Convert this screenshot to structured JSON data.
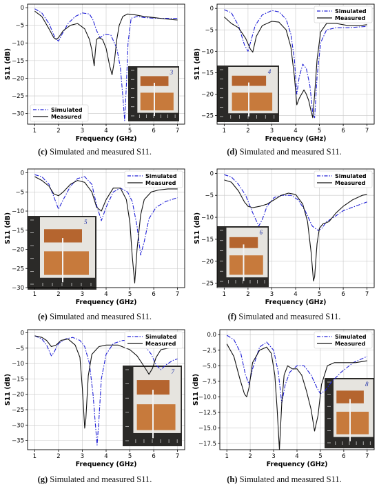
{
  "figure": {
    "panels": [
      {
        "id": "c",
        "caption_letter": "(c)",
        "caption_text": " Simulated and measured S11."
      },
      {
        "id": "d",
        "caption_letter": "(d)",
        "caption_text": " Simulated and measured S11."
      },
      {
        "id": "e",
        "caption_letter": "(e)",
        "caption_text": " Simulated and measured S11."
      },
      {
        "id": "f",
        "caption_letter": "(f)",
        "caption_text": " Simulated and measured S11."
      },
      {
        "id": "g",
        "caption_letter": "(g)",
        "caption_text": " Simulated and measured S11."
      },
      {
        "id": "h",
        "caption_letter": "(h)",
        "caption_text": " Simulated and measured S11."
      }
    ]
  },
  "colors": {
    "simulated": "#1f1fd6",
    "measured": "#111111",
    "grid": "#c8c8c8"
  },
  "chart_data": [
    {
      "id": "c",
      "type": "line",
      "xlabel": "Frequency (GHz)",
      "ylabel": "S11 (dB)",
      "xlim": [
        0.7,
        7.3
      ],
      "ylim": [
        -33,
        1
      ],
      "xticks": [
        1,
        2,
        3,
        4,
        5,
        6,
        7
      ],
      "yticks": [
        0,
        -5,
        -10,
        -15,
        -20,
        -25,
        -30
      ],
      "grid": true,
      "legend": "bottom-left",
      "inset": {
        "position": "bottom-right",
        "label": "3"
      },
      "series": [
        {
          "name": "Simulated",
          "style": "dashdot",
          "x": [
            1.0,
            1.3,
            1.6,
            1.85,
            2.0,
            2.15,
            2.4,
            2.7,
            3.0,
            3.3,
            3.45,
            3.6,
            3.75,
            3.95,
            4.2,
            4.45,
            4.6,
            4.7,
            4.78,
            4.85,
            4.92,
            5.05,
            5.3,
            5.6,
            6.0,
            6.5,
            7.0
          ],
          "y": [
            -0.3,
            -1.5,
            -4.5,
            -8.5,
            -9.5,
            -7.5,
            -4.5,
            -2.5,
            -1.5,
            -1.8,
            -3.5,
            -6.5,
            -8.5,
            -7.5,
            -7.8,
            -11.5,
            -17.0,
            -25.0,
            -32.0,
            -22.0,
            -10.0,
            -3.0,
            -2.5,
            -2.8,
            -3.0,
            -3.0,
            -3.0
          ]
        },
        {
          "name": "Measured",
          "style": "solid",
          "x": [
            1.0,
            1.3,
            1.6,
            1.8,
            1.9,
            2.0,
            2.2,
            2.5,
            2.8,
            3.1,
            3.3,
            3.4,
            3.5,
            3.55,
            3.6,
            3.7,
            3.85,
            4.0,
            4.15,
            4.25,
            4.35,
            4.45,
            4.55,
            4.7,
            4.9,
            5.2,
            5.6,
            6.0,
            6.5,
            7.0
          ],
          "y": [
            -1.0,
            -2.5,
            -6.0,
            -8.5,
            -9.0,
            -8.5,
            -6.5,
            -5.0,
            -4.5,
            -6.0,
            -9.0,
            -12.0,
            -16.5,
            -12.0,
            -9.0,
            -8.5,
            -9.0,
            -11.5,
            -16.5,
            -19.0,
            -15.0,
            -9.0,
            -5.0,
            -2.5,
            -1.8,
            -2.0,
            -2.5,
            -2.8,
            -3.2,
            -3.5
          ]
        }
      ]
    },
    {
      "id": "d",
      "type": "line",
      "xlabel": "Frequency (GHz)",
      "ylabel": "S11 (dB)",
      "xlim": [
        0.7,
        7.3
      ],
      "ylim": [
        -27,
        1
      ],
      "xticks": [
        1,
        2,
        3,
        4,
        5,
        6,
        7
      ],
      "yticks": [
        0,
        -5,
        -10,
        -15,
        -20,
        -25
      ],
      "grid": true,
      "legend": "top-right",
      "inset": {
        "position": "middle-left",
        "label": "4"
      },
      "series": [
        {
          "name": "Simulated",
          "style": "dashdot",
          "x": [
            1.0,
            1.3,
            1.6,
            1.85,
            2.0,
            2.1,
            2.3,
            2.6,
            3.0,
            3.3,
            3.6,
            3.8,
            3.95,
            4.05,
            4.15,
            4.3,
            4.45,
            4.6,
            4.72,
            4.8,
            4.9,
            5.05,
            5.3,
            5.7,
            6.2,
            7.0
          ],
          "y": [
            -0.3,
            -1.0,
            -4.0,
            -8.5,
            -10.0,
            -8.0,
            -4.0,
            -1.5,
            -0.5,
            -0.8,
            -2.5,
            -6.0,
            -12.0,
            -20.0,
            -16.0,
            -13.0,
            -14.0,
            -18.0,
            -24.5,
            -25.5,
            -16.0,
            -8.0,
            -5.0,
            -4.5,
            -4.5,
            -4.2
          ]
        },
        {
          "name": "Measured",
          "style": "solid",
          "x": [
            1.0,
            1.3,
            1.6,
            1.9,
            2.1,
            2.2,
            2.35,
            2.6,
            3.0,
            3.3,
            3.6,
            3.8,
            3.95,
            4.05,
            4.15,
            4.25,
            4.35,
            4.45,
            4.55,
            4.65,
            4.72,
            4.8,
            4.9,
            5.05,
            5.3,
            5.7,
            6.2,
            6.7,
            7.0
          ],
          "y": [
            -2.0,
            -3.5,
            -4.5,
            -7.0,
            -9.5,
            -10.2,
            -6.5,
            -4.0,
            -3.0,
            -3.2,
            -5.0,
            -9.0,
            -16.0,
            -22.5,
            -21.0,
            -20.0,
            -19.0,
            -20.0,
            -21.5,
            -24.0,
            -25.5,
            -20.0,
            -12.0,
            -5.5,
            -3.5,
            -3.5,
            -4.0,
            -4.0,
            -3.8
          ]
        }
      ]
    },
    {
      "id": "e",
      "type": "line",
      "xlabel": "Frequency (GHz)",
      "ylabel": "S11 (dB)",
      "xlim": [
        0.7,
        7.3
      ],
      "ylim": [
        -30,
        1
      ],
      "xticks": [
        1,
        2,
        3,
        4,
        5,
        6,
        7
      ],
      "yticks": [
        0,
        -5,
        -10,
        -15,
        -20,
        -25,
        -30
      ],
      "grid": true,
      "legend": "top-right",
      "inset": {
        "position": "bottom-left",
        "label": "5"
      },
      "series": [
        {
          "name": "Simulated",
          "style": "dashdot",
          "x": [
            1.0,
            1.3,
            1.6,
            1.85,
            2.0,
            2.2,
            2.5,
            2.8,
            3.1,
            3.4,
            3.6,
            3.8,
            4.0,
            4.3,
            4.6,
            4.9,
            5.1,
            5.3,
            5.45,
            5.6,
            5.8,
            6.1,
            6.5,
            7.0
          ],
          "y": [
            -0.5,
            -1.0,
            -3.0,
            -7.0,
            -9.5,
            -7.0,
            -3.5,
            -1.5,
            -1.0,
            -3.0,
            -8.5,
            -12.5,
            -9.0,
            -5.0,
            -4.0,
            -5.0,
            -7.5,
            -14.0,
            -21.5,
            -18.0,
            -12.0,
            -9.0,
            -7.5,
            -6.5
          ]
        },
        {
          "name": "Measured",
          "style": "solid",
          "x": [
            1.0,
            1.3,
            1.6,
            1.8,
            2.0,
            2.2,
            2.5,
            2.8,
            3.1,
            3.4,
            3.6,
            3.8,
            4.0,
            4.3,
            4.6,
            4.85,
            5.0,
            5.1,
            5.2,
            5.3,
            5.45,
            5.6,
            5.9,
            6.2,
            6.6,
            7.0
          ],
          "y": [
            -1.0,
            -2.0,
            -3.5,
            -5.5,
            -6.0,
            -5.0,
            -3.0,
            -2.0,
            -2.5,
            -5.0,
            -9.0,
            -10.0,
            -7.0,
            -4.0,
            -4.0,
            -7.0,
            -13.0,
            -22.0,
            -28.8,
            -20.0,
            -11.0,
            -7.0,
            -5.0,
            -4.5,
            -4.2,
            -4.2
          ]
        }
      ]
    },
    {
      "id": "f",
      "type": "line",
      "xlabel": "Frequency (GHz)",
      "ylabel": "S11 (dB)",
      "xlim": [
        0.7,
        7.3
      ],
      "ylim": [
        -26,
        1
      ],
      "xticks": [
        1,
        2,
        3,
        4,
        5,
        6,
        7
      ],
      "yticks": [
        0,
        -5,
        -10,
        -15,
        -20,
        -25
      ],
      "grid": true,
      "legend": "top-right",
      "inset": {
        "position": "bottom-left",
        "label": "6"
      },
      "series": [
        {
          "name": "Simulated",
          "style": "dashdot",
          "x": [
            1.0,
            1.3,
            1.6,
            1.9,
            2.2,
            2.45,
            2.6,
            2.8,
            3.1,
            3.4,
            3.8,
            4.1,
            4.4,
            4.7,
            4.95,
            5.1,
            5.3,
            5.6,
            6.0,
            6.5,
            7.0
          ],
          "y": [
            -0.3,
            -0.8,
            -2.5,
            -5.0,
            -9.0,
            -12.0,
            -10.5,
            -7.5,
            -5.5,
            -5.0,
            -5.0,
            -6.0,
            -8.5,
            -12.0,
            -13.0,
            -12.5,
            -11.0,
            -10.0,
            -8.5,
            -7.5,
            -6.5
          ]
        },
        {
          "name": "Measured",
          "style": "solid",
          "x": [
            1.0,
            1.3,
            1.6,
            1.85,
            2.0,
            2.2,
            2.5,
            2.8,
            3.1,
            3.4,
            3.7,
            4.0,
            4.3,
            4.5,
            4.65,
            4.75,
            4.8,
            4.9,
            5.0,
            5.15,
            5.4,
            5.7,
            6.0,
            6.4,
            6.8,
            7.0
          ],
          "y": [
            -1.5,
            -2.0,
            -4.0,
            -6.5,
            -7.5,
            -7.8,
            -7.5,
            -7.0,
            -6.0,
            -5.0,
            -4.5,
            -4.8,
            -7.0,
            -11.0,
            -18.0,
            -24.5,
            -23.5,
            -16.0,
            -12.5,
            -11.5,
            -11.0,
            -9.0,
            -7.5,
            -6.0,
            -5.0,
            -4.8
          ]
        }
      ]
    },
    {
      "id": "g",
      "type": "line",
      "xlabel": "Frequency (GHz)",
      "ylabel": "S11 (dB)",
      "xlim": [
        0.7,
        7.3
      ],
      "ylim": [
        -38,
        1
      ],
      "xticks": [
        1,
        2,
        3,
        4,
        5,
        6,
        7
      ],
      "yticks": [
        0,
        -5,
        -10,
        -15,
        -20,
        -25,
        -30,
        -35
      ],
      "grid": true,
      "legend": "top-right",
      "inset": {
        "position": "bottom-right",
        "label": "7"
      },
      "series": [
        {
          "name": "Simulated",
          "style": "dashdot",
          "x": [
            1.0,
            1.3,
            1.5,
            1.7,
            1.8,
            2.0,
            2.3,
            2.6,
            2.9,
            3.1,
            3.3,
            3.45,
            3.55,
            3.62,
            3.7,
            3.8,
            4.0,
            4.3,
            4.7,
            5.2,
            5.6,
            5.9,
            6.1,
            6.3,
            6.5,
            6.8,
            7.0
          ],
          "y": [
            -1.0,
            -2.0,
            -4.0,
            -7.5,
            -6.5,
            -3.5,
            -2.0,
            -1.5,
            -2.5,
            -4.5,
            -10.0,
            -20.0,
            -30.0,
            -36.5,
            -28.0,
            -15.0,
            -7.0,
            -3.5,
            -2.5,
            -2.5,
            -4.0,
            -7.0,
            -10.5,
            -12.0,
            -10.5,
            -9.0,
            -8.5
          ]
        },
        {
          "name": "Measured",
          "style": "solid",
          "x": [
            1.0,
            1.3,
            1.5,
            1.7,
            1.9,
            2.1,
            2.4,
            2.7,
            2.9,
            3.0,
            3.1,
            3.15,
            3.25,
            3.4,
            3.7,
            4.0,
            4.5,
            5.0,
            5.3,
            5.6,
            5.8,
            5.95,
            6.1,
            6.3,
            6.6,
            7.0
          ],
          "y": [
            -1.0,
            -1.5,
            -2.5,
            -4.5,
            -4.0,
            -2.5,
            -2.0,
            -4.0,
            -8.0,
            -18.0,
            -31.0,
            -28.0,
            -14.0,
            -7.0,
            -4.5,
            -4.0,
            -4.0,
            -5.5,
            -7.5,
            -11.0,
            -13.5,
            -11.5,
            -8.0,
            -5.5,
            -5.0,
            -4.5
          ]
        }
      ]
    },
    {
      "id": "h",
      "type": "line",
      "xlabel": "Frequency (GHz)",
      "ylabel": "S11 (dB)",
      "xlim": [
        0.7,
        7.3
      ],
      "ylim": [
        -18.5,
        0.8
      ],
      "xticks": [
        1,
        2,
        3,
        4,
        5,
        6,
        7
      ],
      "yticks": [
        0.0,
        -2.5,
        -5.0,
        -7.5,
        -10.0,
        -12.5,
        -15.0,
        -17.5
      ],
      "ytick_labels": [
        "0.0",
        "−2.5",
        "−5.0",
        "−7.5",
        "−10.0",
        "−12.5",
        "−15.0",
        "−17.5"
      ],
      "grid": true,
      "legend": "top-right",
      "inset": {
        "position": "bottom-right",
        "label": "8"
      },
      "series": [
        {
          "name": "Simulated",
          "style": "dashdot",
          "x": [
            1.0,
            1.3,
            1.6,
            1.8,
            1.95,
            2.1,
            2.4,
            2.7,
            3.0,
            3.2,
            3.35,
            3.5,
            3.7,
            4.0,
            4.3,
            4.6,
            4.85,
            5.0,
            5.2,
            5.5,
            5.9,
            6.4,
            7.0
          ],
          "y": [
            -0.1,
            -0.8,
            -3.0,
            -6.5,
            -8.0,
            -5.5,
            -2.0,
            -1.2,
            -2.5,
            -6.0,
            -11.0,
            -8.0,
            -6.0,
            -5.0,
            -5.0,
            -6.5,
            -8.5,
            -9.5,
            -9.0,
            -7.5,
            -6.0,
            -4.5,
            -3.5
          ]
        },
        {
          "name": "Measured",
          "style": "solid",
          "x": [
            1.0,
            1.3,
            1.55,
            1.75,
            1.85,
            1.95,
            2.1,
            2.4,
            2.7,
            2.9,
            3.05,
            3.15,
            3.25,
            3.35,
            3.45,
            3.6,
            3.8,
            4.0,
            4.2,
            4.4,
            4.6,
            4.75,
            4.9,
            5.05,
            5.3,
            5.6,
            6.0,
            6.5,
            7.0
          ],
          "y": [
            -1.5,
            -3.5,
            -7.0,
            -9.5,
            -10.0,
            -8.5,
            -4.5,
            -2.5,
            -2.0,
            -3.0,
            -6.5,
            -12.0,
            -18.5,
            -11.0,
            -6.5,
            -5.0,
            -5.5,
            -5.5,
            -6.5,
            -9.0,
            -12.0,
            -15.5,
            -13.0,
            -8.0,
            -5.0,
            -4.5,
            -4.5,
            -4.5,
            -4.2
          ]
        }
      ]
    }
  ]
}
